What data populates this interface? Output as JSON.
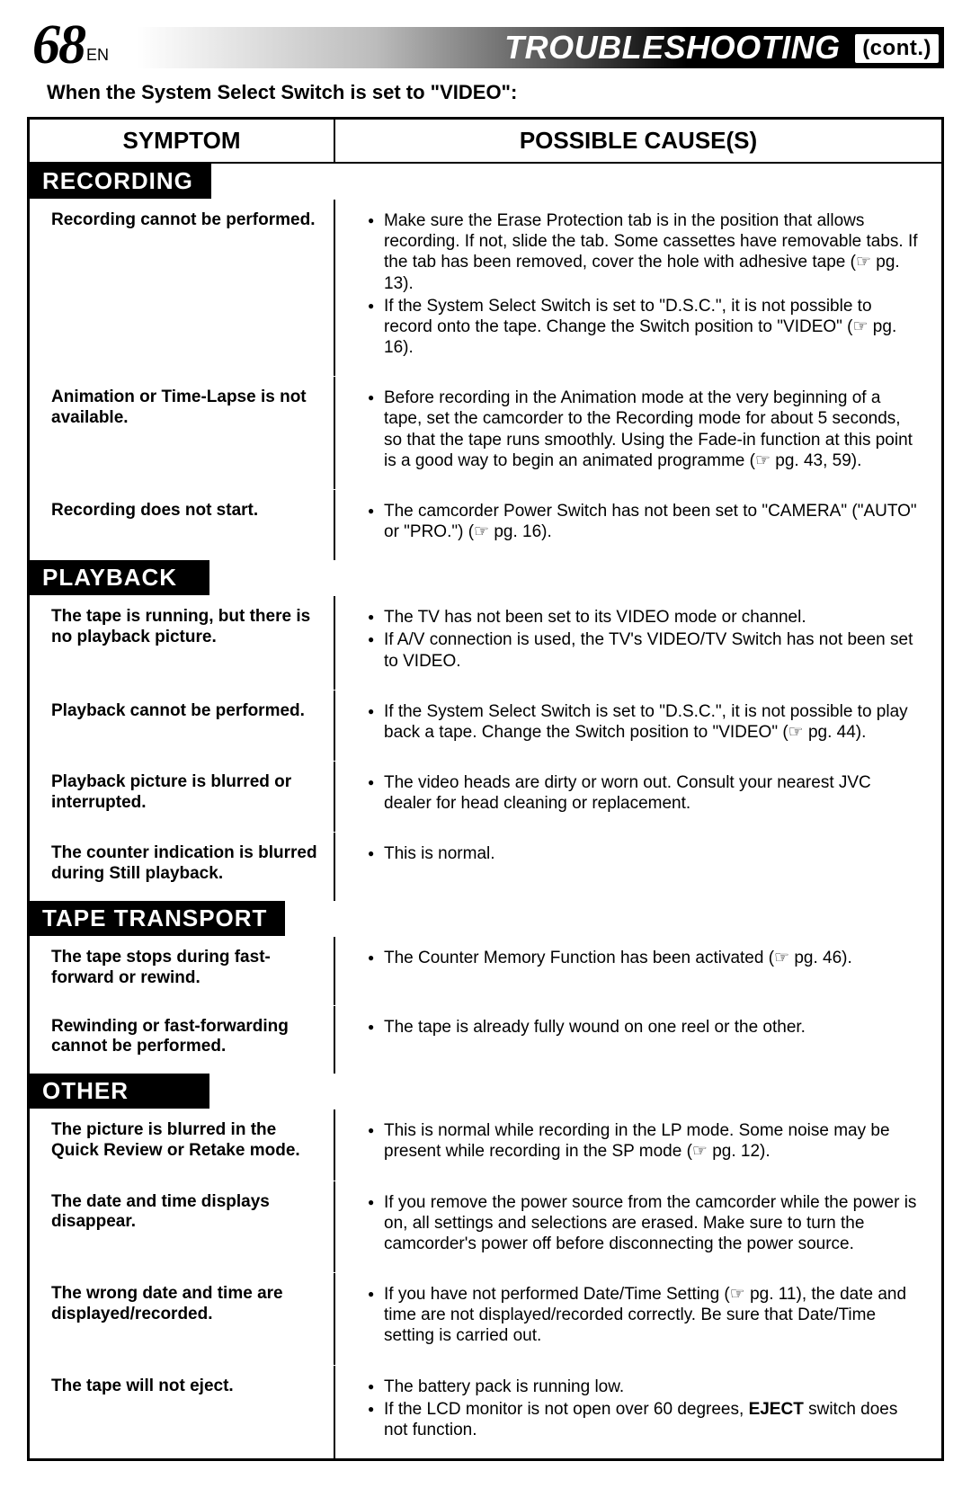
{
  "header": {
    "page_number": "68",
    "lang": "EN",
    "title": "TROUBLESHOOTING",
    "cont": "(cont.)"
  },
  "intro": "When the System Select Switch is set to \"VIDEO\":",
  "columns": {
    "symptom": "SYMPTOM",
    "cause": "POSSIBLE CAUSE(S)"
  },
  "ref_glyph": "☞",
  "sections": [
    {
      "title": "RECORDING",
      "rows": [
        {
          "symptom": "Recording cannot be performed.",
          "causes": [
            "Make sure the Erase Protection tab is in the position that allows recording. If not, slide the tab. Some cassettes have removable tabs. If the tab has been removed, cover the hole with adhesive tape (☞ pg. 13).",
            "If the System Select Switch is set to \"D.S.C.\", it is not possible to record onto the tape. Change the Switch position to \"VIDEO\" (☞ pg. 16)."
          ]
        },
        {
          "symptom": "Animation or Time-Lapse is not available.",
          "causes": [
            "Before recording in the Animation mode at the very beginning of a tape, set the camcorder to the Recording mode for about 5 seconds, so that the tape runs smoothly. Using the Fade-in function at this point is a good way to begin an animated programme (☞ pg. 43, 59)."
          ]
        },
        {
          "symptom": "Recording does not start.",
          "causes": [
            "The camcorder Power Switch has not been set to \"CAMERA\" (\"AUTO\" or \"PRO.\") (☞ pg. 16)."
          ]
        }
      ]
    },
    {
      "title": "PLAYBACK",
      "rows": [
        {
          "symptom": "The tape is running, but there is no playback picture.",
          "causes": [
            "The TV has not been set to its VIDEO mode or channel.",
            "If A/V connection is used, the TV's VIDEO/TV Switch has not been set to VIDEO."
          ]
        },
        {
          "symptom": "Playback cannot be performed.",
          "causes": [
            "If the System Select Switch is set to \"D.S.C.\", it is not possible to play back a tape. Change the Switch position to \"VIDEO\" (☞ pg. 44)."
          ]
        },
        {
          "symptom": "Playback picture is blurred or interrupted.",
          "causes": [
            "The video heads are dirty or worn out. Consult your nearest JVC dealer for head cleaning or replacement."
          ]
        },
        {
          "symptom": "The counter indication is blurred during Still playback.",
          "causes": [
            "This is normal."
          ]
        }
      ]
    },
    {
      "title": "TAPE TRANSPORT",
      "rows": [
        {
          "symptom": "The tape stops during fast-forward or rewind.",
          "causes": [
            "The Counter Memory Function has been activated (☞ pg. 46)."
          ]
        },
        {
          "symptom": "Rewinding or fast-forwarding cannot be performed.",
          "causes": [
            "The tape is already fully wound on one reel or the other."
          ]
        }
      ]
    },
    {
      "title": "OTHER",
      "rows": [
        {
          "symptom": "The picture is blurred in the Quick Review or Retake mode.",
          "causes": [
            "This is normal while recording in the LP mode. Some noise may be present while recording in the SP mode (☞ pg. 12)."
          ]
        },
        {
          "symptom": "The date and time displays disappear.",
          "causes": [
            "If you remove the power source from the camcorder while the power is on, all settings and selections are erased. Make sure to turn the camcorder's power off before disconnecting the power source."
          ]
        },
        {
          "symptom": "The wrong date and time are displayed/recorded.",
          "causes": [
            "If you have not performed Date/Time Setting (☞ pg. 11), the date and time are not displayed/recorded correctly. Be sure that Date/Time setting is carried out."
          ]
        },
        {
          "symptom": "The tape will not eject.",
          "causes": [
            "The battery pack is running low.",
            "If the LCD monitor is not open over 60 degrees, <strong class=\"eject\">EJECT</strong> switch does not function."
          ]
        }
      ]
    }
  ],
  "colors": {
    "black": "#000000",
    "white": "#ffffff",
    "grad_mid1": "#bcbcbc",
    "grad_mid2": "#525252"
  },
  "fonts": {
    "body": "Optima / Segoe UI",
    "condensed": "Helvetica Neue Condensed / Arial Narrow",
    "pagenum": "Optima Italic"
  }
}
